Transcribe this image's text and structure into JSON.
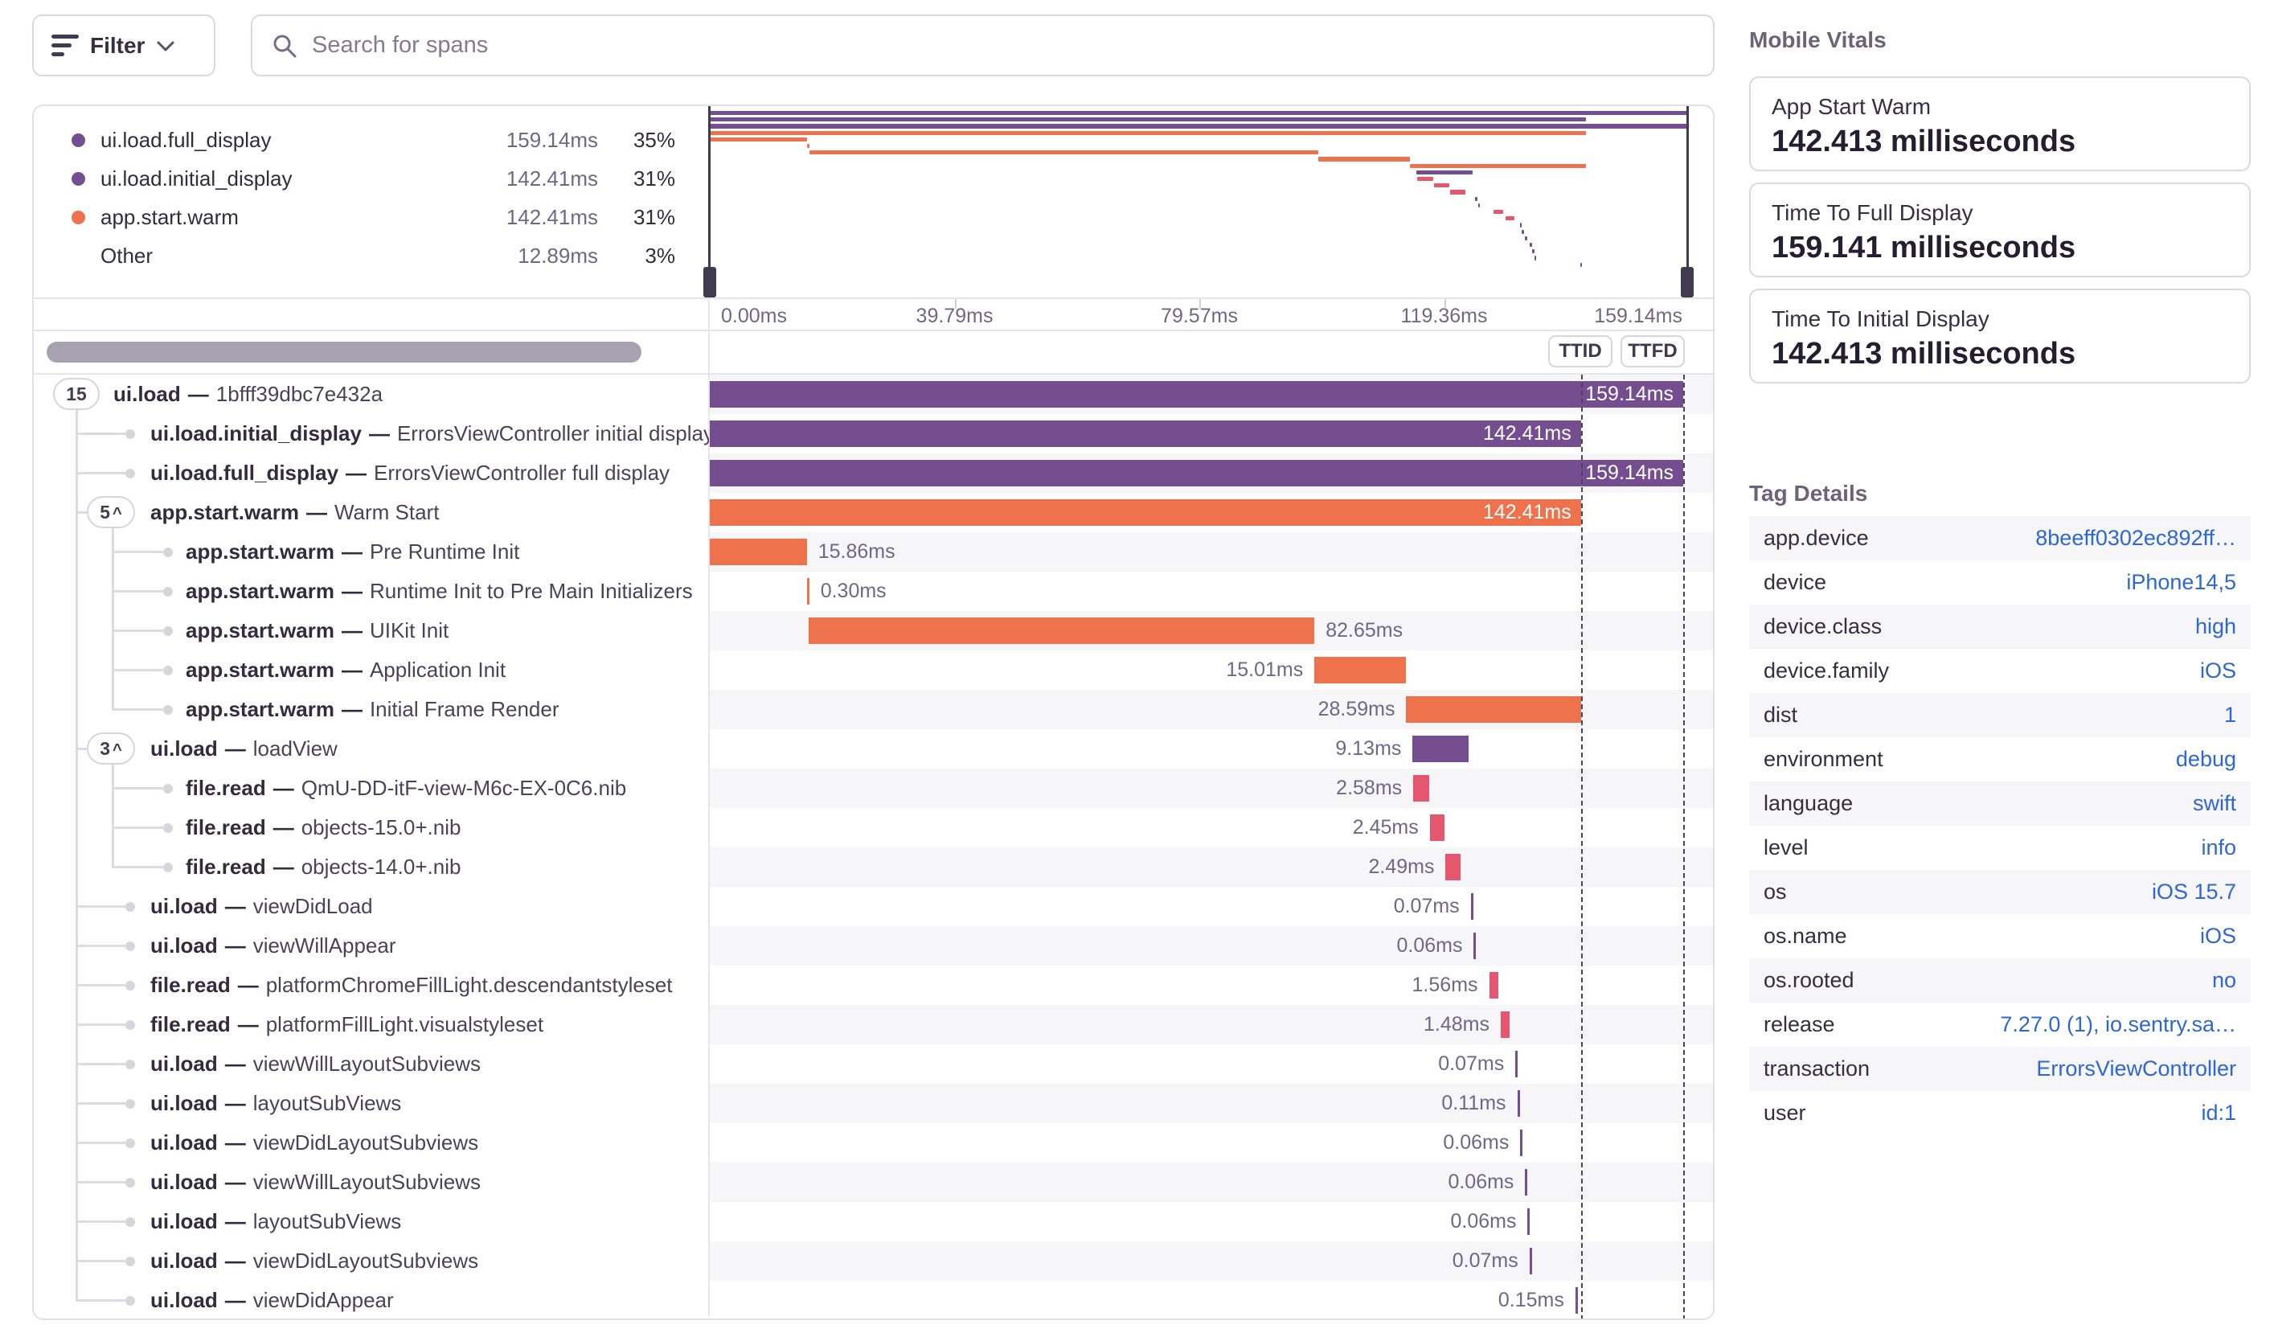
{
  "ui": {
    "separator": "—",
    "caret": "^"
  },
  "toolbar": {
    "filter_label": "Filter",
    "search_placeholder": "Search for spans"
  },
  "legend": {
    "items": [
      {
        "name": "ui.load.full_display",
        "duration": "159.14ms",
        "pct": "35%",
        "color": "purple"
      },
      {
        "name": "ui.load.initial_display",
        "duration": "142.41ms",
        "pct": "31%",
        "color": "purple"
      },
      {
        "name": "app.start.warm",
        "duration": "142.41ms",
        "pct": "31%",
        "color": "orange"
      },
      {
        "name": "Other",
        "duration": "12.89ms",
        "pct": "3%",
        "color": null
      }
    ]
  },
  "minimap": {
    "axis_labels": [
      "0.00ms",
      "39.79ms",
      "79.57ms",
      "119.36ms",
      "159.14ms"
    ]
  },
  "markers": {
    "ttid_label": "TTID",
    "ttfd_label": "TTFD",
    "ttid_ms": 142.41,
    "ttfd_ms": 159.14
  },
  "timeline": {
    "total_ms": 159.14
  },
  "spans": [
    {
      "op": "ui.load",
      "desc": "1bfff39dbc7e432a",
      "badge": "15",
      "caret": false,
      "depth": 0,
      "start": 0,
      "dur": 159.14,
      "dur_label": "159.14ms",
      "color": "purple",
      "label_pos": "inside"
    },
    {
      "op": "ui.load.initial_display",
      "desc": "ErrorsViewController initial display",
      "badge": null,
      "caret": false,
      "depth": 1,
      "start": 0,
      "dur": 142.41,
      "dur_label": "142.41ms",
      "color": "purple",
      "label_pos": "inside"
    },
    {
      "op": "ui.load.full_display",
      "desc": "ErrorsViewController full display",
      "badge": null,
      "caret": false,
      "depth": 1,
      "start": 0,
      "dur": 159.14,
      "dur_label": "159.14ms",
      "color": "purple",
      "label_pos": "inside"
    },
    {
      "op": "app.start.warm",
      "desc": "Warm Start",
      "badge": "5",
      "caret": true,
      "depth": 1,
      "start": 0,
      "dur": 142.41,
      "dur_label": "142.41ms",
      "color": "orange",
      "label_pos": "inside"
    },
    {
      "op": "app.start.warm",
      "desc": "Pre Runtime Init",
      "badge": null,
      "caret": false,
      "depth": 2,
      "start": 0,
      "dur": 15.86,
      "dur_label": "15.86ms",
      "color": "orange",
      "label_pos": "after"
    },
    {
      "op": "app.start.warm",
      "desc": "Runtime Init to Pre Main Initializers",
      "badge": null,
      "caret": false,
      "depth": 2,
      "start": 15.86,
      "dur": 0.3,
      "dur_label": "0.30ms",
      "color": "orange",
      "label_pos": "after"
    },
    {
      "op": "app.start.warm",
      "desc": "UIKit Init",
      "badge": null,
      "caret": false,
      "depth": 2,
      "start": 16.2,
      "dur": 82.65,
      "dur_label": "82.65ms",
      "color": "orange",
      "label_pos": "after"
    },
    {
      "op": "app.start.warm",
      "desc": "Application Init",
      "badge": null,
      "caret": false,
      "depth": 2,
      "start": 98.85,
      "dur": 15.01,
      "dur_label": "15.01ms",
      "color": "orange",
      "label_pos": "before"
    },
    {
      "op": "app.start.warm",
      "desc": "Initial Frame Render",
      "badge": null,
      "caret": false,
      "depth": 2,
      "start": 113.86,
      "dur": 28.59,
      "dur_label": "28.59ms",
      "color": "orange",
      "label_pos": "before"
    },
    {
      "op": "ui.load",
      "desc": "loadView",
      "badge": "3",
      "caret": true,
      "depth": 1,
      "start": 114.9,
      "dur": 9.13,
      "dur_label": "9.13ms",
      "color": "purple",
      "label_pos": "before"
    },
    {
      "op": "file.read",
      "desc": "QmU-DD-itF-view-M6c-EX-0C6.nib",
      "badge": null,
      "caret": false,
      "depth": 2,
      "start": 115.0,
      "dur": 2.58,
      "dur_label": "2.58ms",
      "color": "red",
      "label_pos": "before"
    },
    {
      "op": "file.read",
      "desc": "objects-15.0+.nib",
      "badge": null,
      "caret": false,
      "depth": 2,
      "start": 117.7,
      "dur": 2.45,
      "dur_label": "2.45ms",
      "color": "red",
      "label_pos": "before"
    },
    {
      "op": "file.read",
      "desc": "objects-14.0+.nib",
      "badge": null,
      "caret": false,
      "depth": 2,
      "start": 120.3,
      "dur": 2.49,
      "dur_label": "2.49ms",
      "color": "red",
      "label_pos": "before"
    },
    {
      "op": "ui.load",
      "desc": "viewDidLoad",
      "badge": null,
      "caret": false,
      "depth": 1,
      "start": 124.4,
      "dur": 0.07,
      "dur_label": "0.07ms",
      "color": "purple",
      "label_pos": "before"
    },
    {
      "op": "ui.load",
      "desc": "viewWillAppear",
      "badge": null,
      "caret": false,
      "depth": 1,
      "start": 124.9,
      "dur": 0.06,
      "dur_label": "0.06ms",
      "color": "purple",
      "label_pos": "before"
    },
    {
      "op": "file.read",
      "desc": "platformChromeFillLight.descendantstyleset",
      "badge": null,
      "caret": false,
      "depth": 1,
      "start": 127.4,
      "dur": 1.56,
      "dur_label": "1.56ms",
      "color": "red",
      "label_pos": "before"
    },
    {
      "op": "file.read",
      "desc": "platformFillLight.visualstyleset",
      "badge": null,
      "caret": false,
      "depth": 1,
      "start": 129.3,
      "dur": 1.48,
      "dur_label": "1.48ms",
      "color": "red",
      "label_pos": "before"
    },
    {
      "op": "ui.load",
      "desc": "viewWillLayoutSubviews",
      "badge": null,
      "caret": false,
      "depth": 1,
      "start": 131.7,
      "dur": 0.07,
      "dur_label": "0.07ms",
      "color": "purple",
      "label_pos": "before"
    },
    {
      "op": "ui.load",
      "desc": "layoutSubViews",
      "badge": null,
      "caret": false,
      "depth": 1,
      "start": 132.0,
      "dur": 0.11,
      "dur_label": "0.11ms",
      "color": "purple",
      "label_pos": "before"
    },
    {
      "op": "ui.load",
      "desc": "viewDidLayoutSubviews",
      "badge": null,
      "caret": false,
      "depth": 1,
      "start": 132.5,
      "dur": 0.06,
      "dur_label": "0.06ms",
      "color": "purple",
      "label_pos": "before"
    },
    {
      "op": "ui.load",
      "desc": "viewWillLayoutSubviews",
      "badge": null,
      "caret": false,
      "depth": 1,
      "start": 133.3,
      "dur": 0.06,
      "dur_label": "0.06ms",
      "color": "purple",
      "label_pos": "before"
    },
    {
      "op": "ui.load",
      "desc": "layoutSubViews",
      "badge": null,
      "caret": false,
      "depth": 1,
      "start": 133.7,
      "dur": 0.06,
      "dur_label": "0.06ms",
      "color": "purple",
      "label_pos": "before"
    },
    {
      "op": "ui.load",
      "desc": "viewDidLayoutSubviews",
      "badge": null,
      "caret": false,
      "depth": 1,
      "start": 134.0,
      "dur": 0.07,
      "dur_label": "0.07ms",
      "color": "purple",
      "label_pos": "before"
    },
    {
      "op": "ui.load",
      "desc": "viewDidAppear",
      "badge": null,
      "caret": false,
      "depth": 1,
      "start": 141.5,
      "dur": 0.15,
      "dur_label": "0.15ms",
      "color": "purple",
      "label_pos": "before"
    }
  ],
  "vitals": {
    "title": "Mobile Vitals",
    "cards": [
      {
        "label": "App Start Warm",
        "value": "142.413 milliseconds"
      },
      {
        "label": "Time To Full Display",
        "value": "159.141 milliseconds"
      },
      {
        "label": "Time To Initial Display",
        "value": "142.413 milliseconds"
      }
    ]
  },
  "tags": {
    "title": "Tag Details",
    "rows": [
      {
        "key": "app.device",
        "value": "8beeff0302ec892ff…"
      },
      {
        "key": "device",
        "value": "iPhone14,5"
      },
      {
        "key": "device.class",
        "value": "high"
      },
      {
        "key": "device.family",
        "value": "iOS"
      },
      {
        "key": "dist",
        "value": "1"
      },
      {
        "key": "environment",
        "value": "debug"
      },
      {
        "key": "language",
        "value": "swift"
      },
      {
        "key": "level",
        "value": "info"
      },
      {
        "key": "os",
        "value": "iOS 15.7"
      },
      {
        "key": "os.name",
        "value": "iOS"
      },
      {
        "key": "os.rooted",
        "value": "no"
      },
      {
        "key": "release",
        "value": "7.27.0 (1), io.sentry.sa…"
      },
      {
        "key": "transaction",
        "value": "ErrorsViewController"
      },
      {
        "key": "user",
        "value": "id:1"
      }
    ]
  },
  "colors": {
    "purple": "#754e90",
    "orange": "#ee724c",
    "red": "#e4576e",
    "link": "#2e67d3",
    "stripe": "#f6f5f8"
  }
}
